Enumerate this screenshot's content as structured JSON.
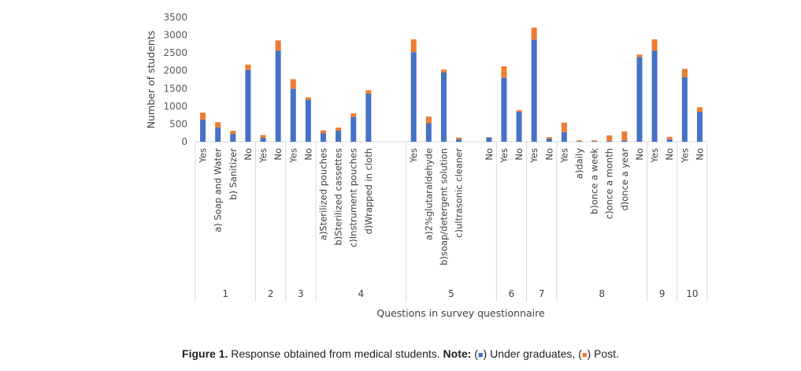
{
  "chart_data": {
    "type": "bar",
    "stacked": true,
    "xlabel": "Questions in survey questionnaire",
    "ylabel": "Number of students",
    "ylim": [
      0,
      3500
    ],
    "yticks": [
      0,
      500,
      1000,
      1500,
      2000,
      2500,
      3000,
      3500
    ],
    "colors": {
      "Under graduates": "#4472c4",
      "Post": "#ed7d31"
    },
    "categories": [
      {
        "label": "Yes",
        "group": "1",
        "values": [
          620,
          200
        ]
      },
      {
        "label": "a) Soap and Water",
        "group": "1",
        "values": [
          400,
          150
        ]
      },
      {
        "label": "b) Sanitizer",
        "group": "1",
        "values": [
          220,
          90
        ]
      },
      {
        "label": "No",
        "group": "1",
        "values": [
          2020,
          150
        ]
      },
      {
        "label": "Yes",
        "group": "2",
        "values": [
          110,
          80
        ]
      },
      {
        "label": "No",
        "group": "2",
        "values": [
          2560,
          290
        ]
      },
      {
        "label": "Yes",
        "group": "3",
        "values": [
          1490,
          270
        ]
      },
      {
        "label": "No",
        "group": "3",
        "values": [
          1180,
          70
        ]
      },
      {
        "label": "a)Sterilized pouches",
        "group": "4",
        "values": [
          240,
          80
        ]
      },
      {
        "label": "b)Sterilized cassettes",
        "group": "4",
        "values": [
          310,
          90
        ]
      },
      {
        "label": "c)Instrument pouches",
        "group": "4",
        "values": [
          700,
          100
        ]
      },
      {
        "label": "d)Wrapped in cloth",
        "group": "4",
        "values": [
          1350,
          100
        ]
      },
      {
        "label": "",
        "group": "4",
        "values": [
          0,
          0
        ]
      },
      {
        "label": "",
        "group": "4",
        "values": [
          0,
          0
        ]
      },
      {
        "label": "Yes",
        "group": "5",
        "values": [
          2520,
          360
        ]
      },
      {
        "label": "a)2%glutaraldehyde",
        "group": "5",
        "values": [
          520,
          190
        ]
      },
      {
        "label": "b)soap/detergent solution",
        "group": "5",
        "values": [
          1950,
          80
        ]
      },
      {
        "label": "c)ultrasonic cleaner",
        "group": "5",
        "values": [
          70,
          50
        ]
      },
      {
        "label": "",
        "group": "5",
        "values": [
          0,
          0
        ]
      },
      {
        "label": "No",
        "group": "5",
        "values": [
          120,
          10
        ]
      },
      {
        "label": "Yes",
        "group": "6",
        "values": [
          1800,
          320
        ]
      },
      {
        "label": "No",
        "group": "6",
        "values": [
          840,
          50
        ]
      },
      {
        "label": "Yes",
        "group": "7",
        "values": [
          2870,
          340
        ]
      },
      {
        "label": "No",
        "group": "7",
        "values": [
          90,
          40
        ]
      },
      {
        "label": "Yes",
        "group": "8",
        "values": [
          270,
          270
        ]
      },
      {
        "label": "a)daily",
        "group": "8",
        "values": [
          10,
          30
        ]
      },
      {
        "label": "b)once a week",
        "group": "8",
        "values": [
          10,
          30
        ]
      },
      {
        "label": "c)once a month",
        "group": "8",
        "values": [
          20,
          160
        ]
      },
      {
        "label": "d)once a year",
        "group": "8",
        "values": [
          40,
          250
        ]
      },
      {
        "label": "No",
        "group": "8",
        "values": [
          2380,
          70
        ]
      },
      {
        "label": "Yes",
        "group": "9",
        "values": [
          2560,
          320
        ]
      },
      {
        "label": "No",
        "group": "9",
        "values": [
          70,
          70
        ]
      },
      {
        "label": "Yes",
        "group": "10",
        "values": [
          1820,
          230
        ]
      },
      {
        "label": "No",
        "group": "10",
        "values": [
          840,
          130
        ]
      }
    ],
    "series": [
      {
        "name": "Under graduates"
      },
      {
        "name": "Post"
      }
    ],
    "groups": [
      "1",
      "2",
      "3",
      "4",
      "5",
      "6",
      "7",
      "8",
      "9",
      "10"
    ]
  },
  "caption": {
    "prefix": "Figure 1.",
    "text": " Response obtained from medical students. ",
    "note_label": "Note:",
    "open1": " (",
    "sw1": "■",
    "mid1": ") Under graduates, (",
    "sw2": "■",
    "end": ") Post."
  }
}
